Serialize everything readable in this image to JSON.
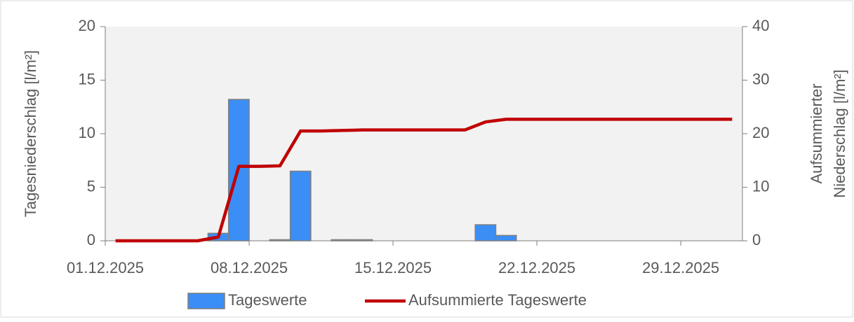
{
  "chart_data": {
    "type": "bar",
    "categories": [
      "01.12.2025",
      null,
      null,
      null,
      null,
      null,
      null,
      "08.12.2025",
      null,
      null,
      null,
      null,
      null,
      null,
      "15.12.2025",
      null,
      null,
      null,
      null,
      null,
      null,
      "22.12.2025",
      null,
      null,
      null,
      null,
      null,
      null,
      "29.12.2025",
      null,
      null
    ],
    "series": [
      {
        "name": "Tageswerte",
        "type": "bar",
        "color": "#3a8ef6",
        "axis": "y",
        "values": [
          0,
          0,
          0,
          0,
          0,
          0.7,
          13.2,
          0,
          0.1,
          6.5,
          0,
          0.1,
          0.1,
          0,
          0,
          0,
          0,
          0,
          1.5,
          0.5,
          0,
          0,
          0,
          0,
          0,
          0,
          0,
          0,
          0,
          0,
          0
        ]
      },
      {
        "name": "Aufsummierte Tageswerte",
        "type": "line",
        "color": "#c00000",
        "axis": "y2",
        "values": [
          0,
          0,
          0,
          0,
          0,
          0.7,
          13.9,
          13.9,
          14.0,
          20.5,
          20.5,
          20.6,
          20.7,
          20.7,
          20.7,
          20.7,
          20.7,
          20.7,
          22.2,
          22.7,
          22.7,
          22.7,
          22.7,
          22.7,
          22.7,
          22.7,
          22.7,
          22.7,
          22.7,
          22.7,
          22.7
        ]
      }
    ],
    "y_label": "Tagesniederschlag [l/m²]",
    "y2_label": [
      "Aufsummierter",
      "Niederschlag [l/m²]"
    ],
    "ylim": [
      0,
      20
    ],
    "yticks": [
      0,
      5,
      10,
      15,
      20
    ],
    "y2lim": [
      0,
      40
    ],
    "y2ticks": [
      0,
      10,
      20,
      30,
      40
    ],
    "legend": "bottom"
  }
}
